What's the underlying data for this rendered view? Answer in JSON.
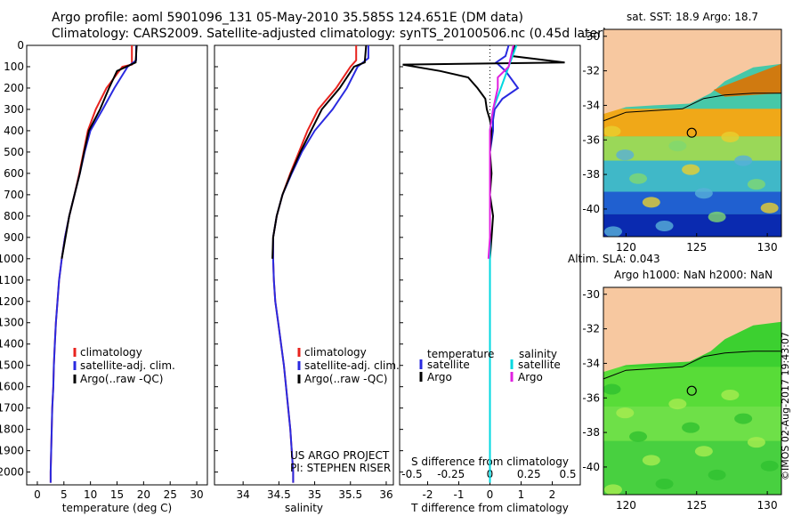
{
  "title": {
    "line1": "Argo profile: aoml 5901096_131 05-May-2010 35.585S 124.651E (DM data)",
    "line2": "Climatology: CARS2009. Satellite-adjusted climatology: synTS_20100506.nc (0.45d later)"
  },
  "colors": {
    "climatology": "#e8231e",
    "satellite": "#2a2ae0",
    "argo": "#000000",
    "argo_salinity": "#e020e0",
    "satellite_salinity": "#00d8e0",
    "land": "#f7c8a0"
  },
  "chart_data": [
    {
      "type": "line",
      "title": "",
      "xlabel": "temperature (deg C)",
      "ylabel": "",
      "xlim": [
        -2,
        32
      ],
      "ylim": [
        2060,
        0
      ],
      "xticks": [
        0,
        5,
        10,
        15,
        20,
        25,
        30
      ],
      "yticks": [
        0,
        100,
        200,
        300,
        400,
        500,
        600,
        700,
        800,
        900,
        1000,
        1100,
        1200,
        1300,
        1400,
        1500,
        1600,
        1700,
        1800,
        1900,
        2000
      ],
      "legend": [
        "climatology",
        "satellite-adj. clim.",
        "Argo(..raw -QC)"
      ],
      "series": [
        {
          "name": "climatology",
          "color": "climatology",
          "depth": [
            0,
            90,
            100,
            200,
            300,
            400,
            500,
            600,
            700,
            800,
            900,
            1000,
            1100,
            1200,
            1300,
            1400,
            1500,
            1600,
            1700,
            1800,
            1900,
            2000,
            2050
          ],
          "values": [
            17.8,
            17.8,
            16,
            13,
            11,
            9.5,
            8.7,
            7.9,
            7.0,
            6.0,
            5.2,
            4.6,
            4.1,
            3.8,
            3.5,
            3.3,
            3.1,
            3.0,
            2.8,
            2.7,
            2.6,
            2.5,
            2.5
          ]
        },
        {
          "name": "satellite-adj. clim.",
          "color": "satellite",
          "depth": [
            0,
            70,
            100,
            200,
            300,
            400,
            500,
            600,
            700,
            800,
            900,
            1000,
            1100,
            1200,
            1300,
            1400,
            1500,
            1600,
            1700,
            1800,
            1900,
            2000,
            2050
          ],
          "values": [
            18.6,
            18.6,
            17,
            14.5,
            12.3,
            10,
            8.9,
            8.0,
            7.0,
            6.0,
            5.2,
            4.6,
            4.1,
            3.8,
            3.5,
            3.3,
            3.1,
            3.0,
            2.8,
            2.7,
            2.6,
            2.5,
            2.5
          ]
        },
        {
          "name": "Argo(..raw -QC)",
          "color": "argo",
          "depth": [
            0,
            80,
            120,
            200,
            300,
            400,
            500,
            600,
            700,
            800,
            900,
            1000
          ],
          "values": [
            18.7,
            18.5,
            15,
            13.5,
            11.8,
            9.7,
            8.8,
            8.0,
            7.0,
            6.0,
            5.3,
            4.6
          ]
        }
      ]
    },
    {
      "type": "line",
      "title": "",
      "xlabel": "salinity",
      "ylabel": "",
      "xlim": [
        33.6,
        36.1
      ],
      "ylim": [
        2060,
        0
      ],
      "xticks": [
        34,
        34.5,
        35,
        35.5,
        36
      ],
      "legend": [
        "climatology",
        "satellite-adj. clim.",
        "Argo(..raw -QC)"
      ],
      "annotations": [
        "US ARGO PROJECT",
        "PI: STEPHEN RISER"
      ],
      "series": [
        {
          "name": "climatology",
          "color": "climatology",
          "depth": [
            0,
            70,
            100,
            200,
            300,
            400,
            500,
            600,
            700,
            800,
            900,
            1000,
            1100,
            1200,
            1300,
            1400,
            1500,
            1600,
            1700,
            1800,
            1900,
            2000,
            2050
          ],
          "values": [
            35.58,
            35.58,
            35.5,
            35.3,
            35.05,
            34.9,
            34.78,
            34.66,
            34.55,
            34.47,
            34.42,
            34.42,
            34.43,
            34.45,
            34.49,
            34.53,
            34.57,
            34.6,
            34.63,
            34.66,
            34.68,
            34.7,
            34.7
          ]
        },
        {
          "name": "satellite-adj. clim.",
          "color": "satellite",
          "depth": [
            0,
            60,
            100,
            200,
            300,
            400,
            500,
            600,
            700,
            800,
            900,
            1000,
            1100,
            1200,
            1300,
            1400,
            1500,
            1600,
            1700,
            1800,
            1900,
            2000,
            2050
          ],
          "values": [
            35.75,
            35.75,
            35.6,
            35.45,
            35.25,
            35.0,
            34.82,
            34.68,
            34.55,
            34.47,
            34.42,
            34.42,
            34.43,
            34.45,
            34.49,
            34.53,
            34.57,
            34.6,
            34.63,
            34.66,
            34.68,
            34.7,
            34.7
          ]
        },
        {
          "name": "Argo(..raw -QC)",
          "color": "argo",
          "depth": [
            0,
            80,
            100,
            200,
            300,
            400,
            500,
            600,
            700,
            800,
            900,
            1000
          ],
          "values": [
            35.72,
            35.7,
            35.55,
            35.35,
            35.1,
            34.95,
            34.8,
            34.67,
            34.55,
            34.47,
            34.42,
            34.41
          ]
        }
      ]
    },
    {
      "type": "line",
      "title": "",
      "xlabel": "T difference from climatology",
      "ylabel": "",
      "xlim": [
        -2.9,
        2.9
      ],
      "ylim": [
        2060,
        0
      ],
      "xticks": [
        -2,
        -1,
        0,
        1,
        2
      ],
      "top_axis_label": "S difference from climatology",
      "top_ticks": [
        -0.5,
        -0.25,
        0,
        0.25,
        0.5
      ],
      "legend_groups": [
        "temperature",
        "salinity"
      ],
      "legend": [
        "satellite",
        "Argo",
        "satellite",
        "Argo"
      ],
      "series": [
        {
          "name": "temperature satellite",
          "color": "satellite",
          "depth": [
            0,
            50,
            80,
            120,
            160,
            200,
            250,
            300,
            350,
            400,
            450,
            500,
            600,
            700,
            800,
            900,
            1000
          ],
          "values": [
            0.6,
            0.5,
            0.2,
            0.5,
            0.7,
            0.9,
            0.4,
            0.15,
            0.1,
            0.1,
            0.05,
            0,
            0,
            0,
            0,
            0,
            0
          ]
        },
        {
          "name": "temperature Argo",
          "color": "argo",
          "depth": [
            0,
            50,
            80,
            90,
            120,
            150,
            200,
            250,
            300,
            350,
            400,
            500,
            600,
            700,
            800,
            900,
            1000
          ],
          "values": [
            0.8,
            0.7,
            2.4,
            -2.8,
            -1.6,
            -0.7,
            -0.4,
            -0.15,
            -0.1,
            0,
            0.05,
            0,
            0.05,
            0,
            0.1,
            0.05,
            0
          ]
        },
        {
          "name": "salinity satellite",
          "color": "satellite_salinity",
          "depth": [
            0,
            100,
            200,
            300,
            400,
            500,
            600,
            800,
            1000,
            1200,
            1400,
            1600,
            1800,
            2000,
            2050
          ],
          "values": [
            0.17,
            0.12,
            0.07,
            0.02,
            0,
            0,
            0,
            0,
            0,
            0,
            0,
            0,
            0,
            0,
            0
          ]
        },
        {
          "name": "salinity Argo",
          "color": "argo_salinity",
          "depth": [
            0,
            100,
            150,
            200,
            300,
            400,
            500,
            600,
            700,
            800,
            900,
            1000
          ],
          "values": [
            0.15,
            0.12,
            0.05,
            0.05,
            0.02,
            0,
            0,
            0,
            0,
            0,
            0,
            -0.01
          ]
        }
      ]
    },
    {
      "type": "heatmap",
      "title": "sat. SST: 18.9 Argo: 18.7",
      "xlim": [
        118.4,
        131
      ],
      "ylim": [
        -41.6,
        -29.6
      ],
      "xticks": [
        120,
        125,
        130
      ],
      "yticks": [
        -30,
        -32,
        -34,
        -36,
        -38,
        -40
      ],
      "marker": {
        "lon": 124.651,
        "lat": -35.585
      }
    },
    {
      "type": "heatmap",
      "title": "Altim. SLA: 0.043",
      "subtitle": "Argo h1000: NaN h2000: NaN",
      "xlim": [
        118.4,
        131
      ],
      "ylim": [
        -41.6,
        -29.6
      ],
      "xticks": [
        120,
        125,
        130
      ],
      "yticks": [
        -30,
        -32,
        -34,
        -36,
        -38,
        -40
      ],
      "marker": {
        "lon": 124.651,
        "lat": -35.585
      }
    }
  ],
  "footer": {
    "credit": "©IMOS 02-Aug-2017 19:43:07"
  }
}
